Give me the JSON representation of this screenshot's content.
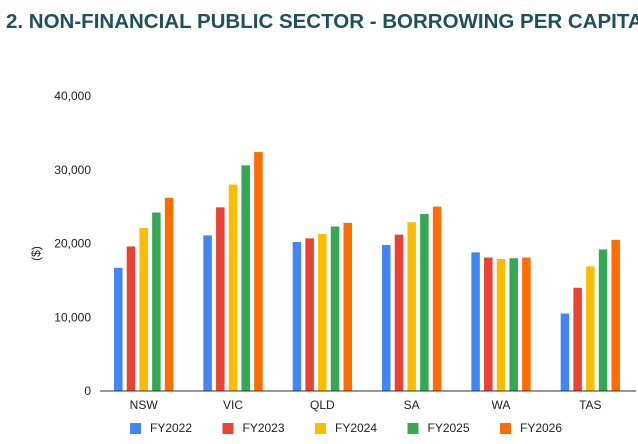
{
  "page": {
    "title": "2. NON-FINANCIAL PUBLIC SECTOR - BORROWING PER CAPITA"
  },
  "colors": {
    "FY2022": "#4285f4",
    "FY2023": "#ea4335",
    "FY2024": "#fbbc04",
    "FY2025": "#34a853",
    "FY2026": "#ff6d01",
    "title": "#1f5060"
  },
  "chart_data": {
    "type": "bar",
    "title": "2. NON-FINANCIAL PUBLIC SECTOR - BORROWING PER CAPITA",
    "xlabel": "",
    "ylabel": "($)",
    "ylim": [
      0,
      40000
    ],
    "yticks": [
      0,
      10000,
      20000,
      30000,
      40000
    ],
    "ytick_labels": [
      "0",
      "10,000",
      "20,000",
      "30,000",
      "40,000"
    ],
    "grid": false,
    "legend_position": "bottom",
    "categories": [
      "NSW",
      "VIC",
      "QLD",
      "SA",
      "WA",
      "TAS"
    ],
    "series": [
      {
        "name": "FY2022",
        "values": [
          16700,
          21100,
          20200,
          19800,
          18800,
          10500
        ]
      },
      {
        "name": "FY2023",
        "values": [
          19600,
          24900,
          20700,
          21200,
          18100,
          14000
        ]
      },
      {
        "name": "FY2024",
        "values": [
          22100,
          28000,
          21300,
          22900,
          17900,
          16900
        ]
      },
      {
        "name": "FY2025",
        "values": [
          24200,
          30600,
          22300,
          24000,
          18000,
          19200
        ]
      },
      {
        "name": "FY2026",
        "values": [
          26200,
          32400,
          22800,
          25000,
          18100,
          20500
        ]
      }
    ]
  }
}
